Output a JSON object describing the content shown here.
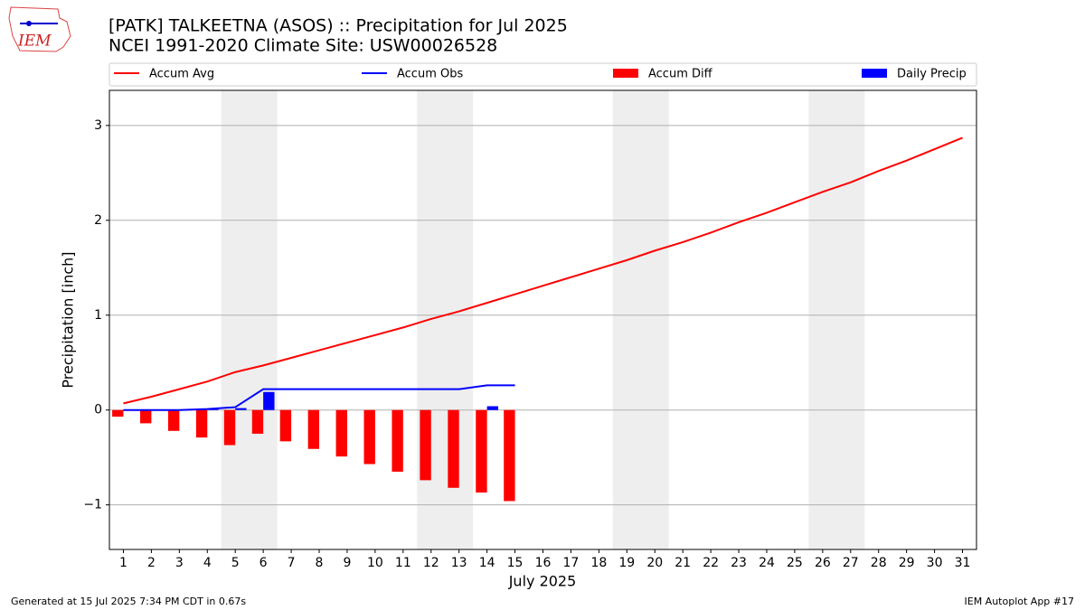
{
  "chart_data": {
    "type": "bar_line",
    "title": "[PATK] TALKEETNA (ASOS) :: Precipitation for Jul 2025",
    "subtitle": "NCEI 1991-2020 Climate Site: USW00026528",
    "y_label": "Precipitation [inch]",
    "x_label": "July 2025",
    "logo_text": "IEM",
    "footer_left": "Generated at 15 Jul 2025 7:34 PM CDT in 0.67s",
    "footer_right": "IEM Autoplot App #17",
    "x": [
      1,
      2,
      3,
      4,
      5,
      6,
      7,
      8,
      9,
      10,
      11,
      12,
      13,
      14,
      15,
      16,
      17,
      18,
      19,
      20,
      21,
      22,
      23,
      24,
      25,
      26,
      27,
      28,
      29,
      30,
      31
    ],
    "xlim": [
      0.5,
      31.5
    ],
    "xticks": [
      1,
      2,
      3,
      4,
      5,
      6,
      7,
      8,
      9,
      10,
      11,
      12,
      13,
      14,
      15,
      16,
      17,
      18,
      19,
      20,
      21,
      22,
      23,
      24,
      25,
      26,
      27,
      28,
      29,
      30,
      31
    ],
    "ylim": [
      -1.47,
      3.37
    ],
    "yticks": [
      {
        "value": -1,
        "label": "−1"
      },
      0,
      1,
      2,
      3
    ],
    "grid": true,
    "shaded_spans": [
      [
        4.5,
        6.5
      ],
      [
        11.5,
        13.5
      ],
      [
        18.5,
        20.5
      ],
      [
        25.5,
        27.5
      ]
    ],
    "shade_color": "#eeeeee",
    "series": [
      {
        "name": "Accum Avg",
        "kind": "line",
        "color": "#ff0000",
        "values": [
          0.07,
          0.14,
          0.22,
          0.3,
          0.4,
          0.47,
          0.55,
          0.63,
          0.71,
          0.79,
          0.87,
          0.96,
          1.04,
          1.13,
          1.22,
          1.31,
          1.4,
          1.49,
          1.58,
          1.68,
          1.77,
          1.87,
          1.98,
          2.08,
          2.19,
          2.3,
          2.4,
          2.52,
          2.63,
          2.75,
          2.87
        ]
      },
      {
        "name": "Accum Obs",
        "kind": "line",
        "color": "#0000ff",
        "values": [
          0,
          0,
          0,
          0.01,
          0.03,
          0.22,
          0.22,
          0.22,
          0.22,
          0.22,
          0.22,
          0.22,
          0.22,
          0.26,
          0.26,
          null,
          null,
          null,
          null,
          null,
          null,
          null,
          null,
          null,
          null,
          null,
          null,
          null,
          null,
          null,
          null
        ]
      },
      {
        "name": "Accum Diff",
        "kind": "bar",
        "color": "#ff0000",
        "values": [
          -0.07,
          -0.14,
          -0.22,
          -0.29,
          -0.37,
          -0.25,
          -0.33,
          -0.41,
          -0.49,
          -0.57,
          -0.65,
          -0.74,
          -0.82,
          -0.87,
          -0.96,
          null,
          null,
          null,
          null,
          null,
          null,
          null,
          null,
          null,
          null,
          null,
          null,
          null,
          null,
          null,
          null
        ]
      },
      {
        "name": "Daily Precip",
        "kind": "bar",
        "color": "#0000ff",
        "values": [
          0,
          0,
          0,
          0.01,
          0.02,
          0.19,
          0,
          0,
          0,
          0,
          0,
          0,
          0,
          0.04,
          0,
          null,
          null,
          null,
          null,
          null,
          null,
          null,
          null,
          null,
          null,
          null,
          null,
          null,
          null,
          null,
          null
        ]
      }
    ]
  }
}
